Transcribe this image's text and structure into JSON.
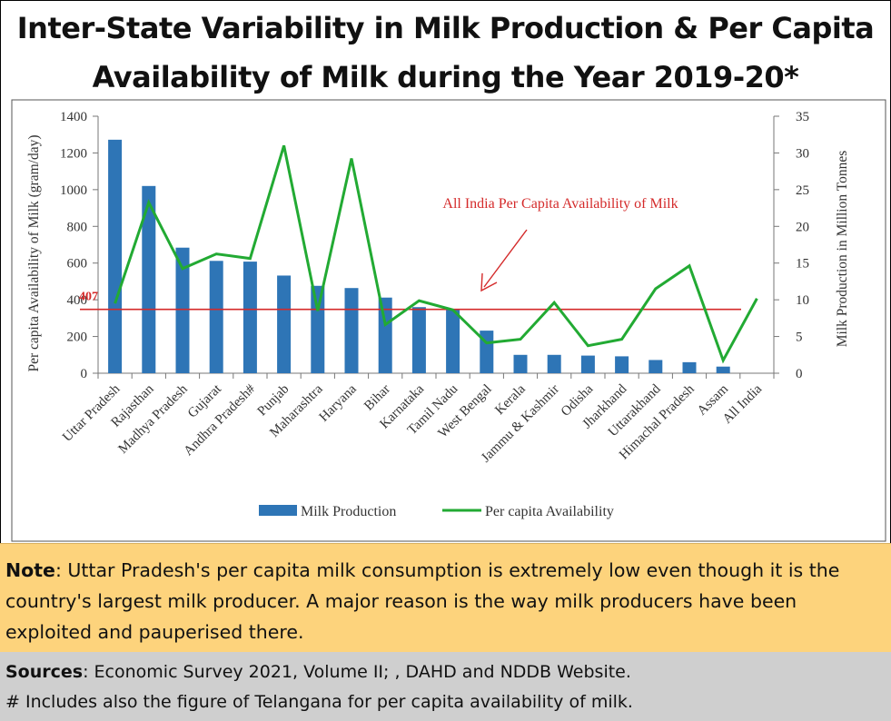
{
  "title_line1": "Inter-State Variability in Milk Production & Per Capita",
  "title_line2": "Availability of Milk during the Year 2019-20*",
  "note": {
    "label": "Note",
    "text": ": Uttar Pradesh's per capita milk consumption is extremely low even though it is the country's largest milk producer.  A major reason is the way milk producers have been exploited and pauperised there."
  },
  "sources": {
    "label": "Sources",
    "text": ": Economic Survey 2021, Volume II; , DAHD and NDDB Website.",
    "footnote": "# Includes also the figure of Telangana for per capita availability of milk."
  },
  "chart_data": {
    "type": "bar",
    "categories": [
      "Uttar Pradesh",
      "Rajasthan",
      "Madhya Pradesh",
      "Gujarat",
      "Andhra Pradesh#",
      "Punjab",
      "Maharashtra",
      "Haryana",
      "Bihar",
      "Karnataka",
      "Tamil Nadu",
      "West Bengal",
      "Kerala",
      "Jammu & Kashmir",
      "Odisha",
      "Jharkhand",
      "Uttarakhand",
      "Himachal Pradesh",
      "Assam",
      "All India"
    ],
    "series": [
      {
        "name": "Milk Production",
        "type": "bar",
        "axis": "right",
        "values": [
          31.8,
          25.5,
          17.1,
          15.3,
          15.2,
          13.3,
          11.9,
          11.6,
          10.3,
          9.0,
          8.7,
          5.8,
          2.5,
          2.5,
          2.4,
          2.3,
          1.8,
          1.5,
          0.9,
          null
        ],
        "color": "#2e75b6"
      },
      {
        "name": "Per capita Availability",
        "type": "line",
        "axis": "left",
        "values": [
          380,
          930,
          570,
          650,
          625,
          1240,
          340,
          1170,
          265,
          395,
          345,
          165,
          185,
          385,
          150,
          185,
          460,
          585,
          70,
          407
        ],
        "color": "#22aa33"
      }
    ],
    "reference_line": {
      "value": 407,
      "label": "407",
      "annotation": "All India Per Capita Availability of Milk",
      "color": "#d42a2a"
    },
    "ylabel": "Per capita Availability of Milk (gram/day)",
    "y2label": "Milk Production in Million Tonnes",
    "ylim": [
      0,
      1400
    ],
    "yticks": [
      0,
      200,
      400,
      600,
      800,
      1000,
      1200,
      1400
    ],
    "y2lim": [
      0,
      35
    ],
    "y2ticks": [
      0,
      5,
      10,
      15,
      20,
      25,
      30,
      35
    ],
    "legend_position": "bottom",
    "grid": false
  }
}
